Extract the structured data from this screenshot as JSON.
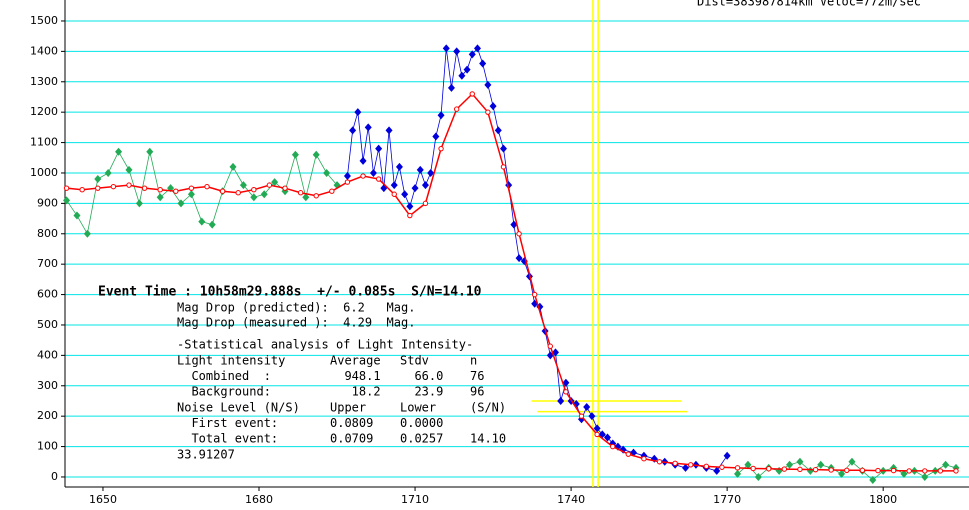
{
  "chart_data": {
    "type": "scatter",
    "header_text": "Dist=383987814km Veloc=772m/sec",
    "xlim": [
      1642.7,
      1816.5
    ],
    "ylim": [
      -33,
      1569
    ],
    "xticks": [
      1650,
      1680,
      1710,
      1740,
      1770,
      1800
    ],
    "yticks": [
      0,
      100,
      200,
      300,
      400,
      500,
      600,
      700,
      800,
      900,
      1000,
      1100,
      1200,
      1300,
      1400,
      1500
    ],
    "grid": true,
    "grid_color": "#00e5e5",
    "series": [
      {
        "color": "#22aa55",
        "marker": "diamond",
        "x": [
          1643,
          1645,
          1647,
          1649,
          1651,
          1653,
          1655,
          1657,
          1659,
          1661,
          1663,
          1665,
          1667,
          1669,
          1671,
          1673,
          1675,
          1677,
          1679,
          1681,
          1683,
          1685,
          1687,
          1689,
          1691,
          1693,
          1695
        ],
        "values": [
          910,
          860,
          800,
          980,
          1000,
          1070,
          1010,
          900,
          1070,
          920,
          950,
          900,
          930,
          840,
          830,
          940,
          1020,
          960,
          920,
          930,
          970,
          940,
          1060,
          920,
          1060,
          1000,
          960
        ]
      },
      {
        "color": "#0000dd",
        "marker": "diamond",
        "x": [
          1697,
          1698,
          1699,
          1700,
          1701,
          1702,
          1703,
          1704,
          1705,
          1706,
          1707,
          1708,
          1709,
          1710,
          1711,
          1712,
          1713,
          1714,
          1715,
          1716,
          1717,
          1718,
          1719,
          1720,
          1721,
          1722,
          1723,
          1724,
          1725,
          1726,
          1727,
          1728,
          1729,
          1730,
          1731,
          1732,
          1733,
          1734,
          1735,
          1736,
          1737,
          1738,
          1739,
          1740,
          1741,
          1742,
          1743,
          1744,
          1745,
          1746,
          1747,
          1748,
          1749,
          1750,
          1752,
          1754,
          1756,
          1758,
          1760,
          1762,
          1764,
          1766,
          1768,
          1770
        ],
        "values": [
          990,
          1140,
          1200,
          1040,
          1150,
          1000,
          1080,
          950,
          1140,
          960,
          1020,
          930,
          890,
          950,
          1010,
          960,
          1000,
          1120,
          1190,
          1410,
          1280,
          1400,
          1320,
          1340,
          1390,
          1410,
          1360,
          1290,
          1220,
          1140,
          1080,
          960,
          830,
          720,
          710,
          660,
          570,
          560,
          480,
          400,
          410,
          250,
          310,
          250,
          240,
          190,
          230,
          200,
          160,
          140,
          130,
          110,
          100,
          90,
          80,
          70,
          60,
          50,
          40,
          30,
          40,
          30,
          20,
          70
        ]
      },
      {
        "color": "#22aa55",
        "marker": "diamond",
        "x": [
          1772,
          1774,
          1776,
          1778,
          1780,
          1782,
          1784,
          1786,
          1788,
          1790,
          1792,
          1794,
          1796,
          1798,
          1800,
          1802,
          1804,
          1806,
          1808,
          1810,
          1812,
          1814
        ],
        "values": [
          10,
          40,
          0,
          30,
          20,
          40,
          50,
          20,
          40,
          30,
          10,
          50,
          20,
          -10,
          20,
          30,
          10,
          20,
          0,
          20,
          40,
          30
        ]
      },
      {
        "color": "#ff0000",
        "marker": "circle",
        "x": [
          1643,
          1646,
          1649,
          1652,
          1655,
          1658,
          1661,
          1664,
          1667,
          1670,
          1673,
          1676,
          1679,
          1682,
          1685,
          1688,
          1691,
          1694,
          1697,
          1700,
          1703,
          1706,
          1709,
          1712,
          1715,
          1718,
          1721,
          1724,
          1727,
          1730,
          1733,
          1736,
          1739,
          1742,
          1745,
          1748,
          1751,
          1754,
          1757,
          1760,
          1763,
          1766,
          1769,
          1772,
          1775,
          1778,
          1781,
          1784,
          1787,
          1790,
          1793,
          1796,
          1799,
          1802,
          1805,
          1808,
          1811,
          1814
        ],
        "values": [
          950,
          945,
          950,
          955,
          960,
          950,
          945,
          940,
          950,
          955,
          940,
          935,
          945,
          960,
          950,
          935,
          925,
          940,
          970,
          990,
          980,
          930,
          860,
          900,
          1080,
          1210,
          1260,
          1200,
          1020,
          800,
          600,
          430,
          280,
          200,
          140,
          100,
          75,
          60,
          50,
          45,
          40,
          35,
          32,
          30,
          28,
          27,
          26,
          25,
          24,
          23,
          22,
          22,
          21,
          21,
          20,
          20,
          20,
          20
        ]
      }
    ],
    "vlines": {
      "color": "#ffff00",
      "values": [
        1744.2,
        1745.2
      ]
    },
    "hlines": {
      "color": "#ffff00",
      "items": [
        {
          "y": 250,
          "x": [
            1732.4,
            1761.2
          ]
        },
        {
          "y": 215,
          "x": [
            1733.5,
            1762.3
          ]
        }
      ]
    },
    "event_time": "Event Time : 10h58m29.888s  +/- 0.085s  S/N=14.10",
    "mag_lines": [
      "Mag Drop (predicted):  6.2   Mag.",
      "Mag Drop (measured ):  4.29  Mag."
    ],
    "stats_title": "-Statistical analysis of Light Intensity-",
    "stats_rows": [
      [
        "Light intensity",
        "Average",
        "Stdv",
        "n"
      ],
      [
        "  Combined  :",
        "  948.1",
        "  66.0",
        "76"
      ],
      [
        "  Background:",
        "   18.2",
        "  23.9",
        "96"
      ],
      [
        "Noise Level (N/S)",
        "Upper",
        "Lower",
        "(S/N)"
      ],
      [
        "  First event:",
        "0.0809",
        "0.0000"
      ],
      [
        "  Total event:",
        "0.0709",
        "0.0257",
        "14.10"
      ]
    ],
    "footer_value": "33.91207"
  }
}
